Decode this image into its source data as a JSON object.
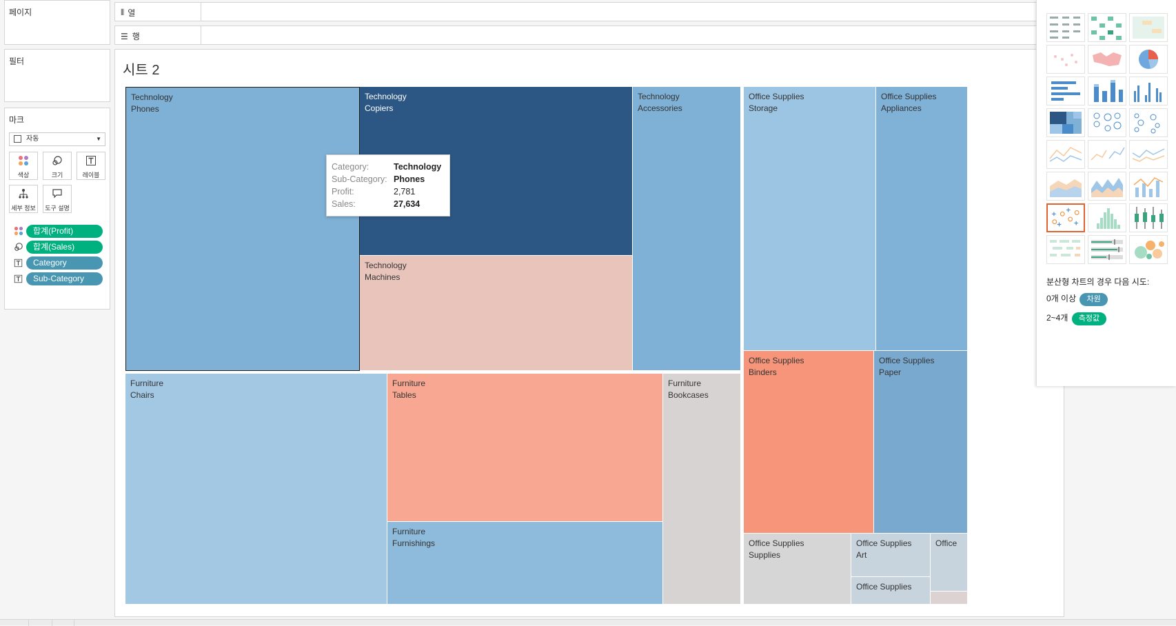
{
  "left_panel": {
    "pages_title": "페이지",
    "filters_title": "필터",
    "marks_title": "마크",
    "mark_type": "자동",
    "mark_buttons": [
      {
        "label": "색상",
        "icon": "color-dots-icon"
      },
      {
        "label": "크기",
        "icon": "size-circles-icon"
      },
      {
        "label": "레이블",
        "icon": "label-T-icon"
      },
      {
        "label": "세부 정보",
        "icon": "detail-tree-icon"
      },
      {
        "label": "도구 설명",
        "icon": "tooltip-bubble-icon"
      }
    ],
    "pills": [
      {
        "label": "합계(Profit)",
        "icon": "color-dots-icon",
        "color": "#00b180"
      },
      {
        "label": "합계(Sales)",
        "icon": "size-circles-icon",
        "color": "#00b180"
      },
      {
        "label": "Category",
        "icon": "label-T-icon",
        "color": "#4996b2"
      },
      {
        "label": "Sub-Category",
        "icon": "label-T-icon",
        "color": "#4996b2"
      }
    ]
  },
  "shelves": {
    "columns_label": "열",
    "rows_label": "행"
  },
  "sheet": {
    "title": "시트 2"
  },
  "treemap": {
    "cells": [
      {
        "category": "Technology",
        "sub": "Phones",
        "color": "#7fb0d5"
      },
      {
        "category": "Technology",
        "sub": "Copiers",
        "color": "#2c5784"
      },
      {
        "category": "Technology",
        "sub": "Machines",
        "color": "#e9c4bb"
      },
      {
        "category": "Technology",
        "sub": "Accessories",
        "color": "#7fb0d5"
      },
      {
        "category": "Office Supplies",
        "sub": "Storage",
        "color": "#9cc5e3"
      },
      {
        "category": "Office Supplies",
        "sub": "Appliances",
        "color": "#80b1d7"
      },
      {
        "category": "Office Supplies",
        "sub": "Binders",
        "color": "#f6957a"
      },
      {
        "category": "Office Supplies",
        "sub": "Paper",
        "color": "#7aa9d0"
      },
      {
        "category": "Furniture",
        "sub": "Chairs",
        "color": "#a3c8e4"
      },
      {
        "category": "Furniture",
        "sub": "Tables",
        "color": "#f8a792"
      },
      {
        "category": "Furniture",
        "sub": "Furnishings",
        "color": "#8ebadb"
      },
      {
        "category": "Furniture",
        "sub": "Bookcases",
        "color": "#d7d3d2"
      },
      {
        "category": "Office Supplies",
        "sub": "Supplies",
        "color": "#d6d6d6"
      },
      {
        "category": "Office Supplies",
        "sub": "Art",
        "color": "#c7d3dd"
      },
      {
        "category": "Office Supplies",
        "sub": "",
        "color": "#c7d3dd"
      },
      {
        "category": "Office",
        "sub": "",
        "color": "#c7d3dd"
      },
      {
        "category": "",
        "sub": "",
        "color": "#dcd2d2"
      }
    ]
  },
  "tooltip": {
    "rows": [
      {
        "key": "Category:",
        "value": "Technology"
      },
      {
        "key": "Sub-Category:",
        "value": "Phones"
      },
      {
        "key": "Profit:",
        "value": "2,781"
      },
      {
        "key": "Sales:",
        "value": "27,634"
      }
    ]
  },
  "show_me": {
    "selected": "scatter-plot",
    "hint_title": "분산형 차트의 경우 다음 시도:",
    "hint_line1_prefix": "0개 이상",
    "hint_line1_pill": "차원",
    "hint_line2_prefix": "2~4개",
    "hint_line2_pill": "측정값",
    "dimension_color": "#4996b2",
    "measure_color": "#00b180"
  }
}
